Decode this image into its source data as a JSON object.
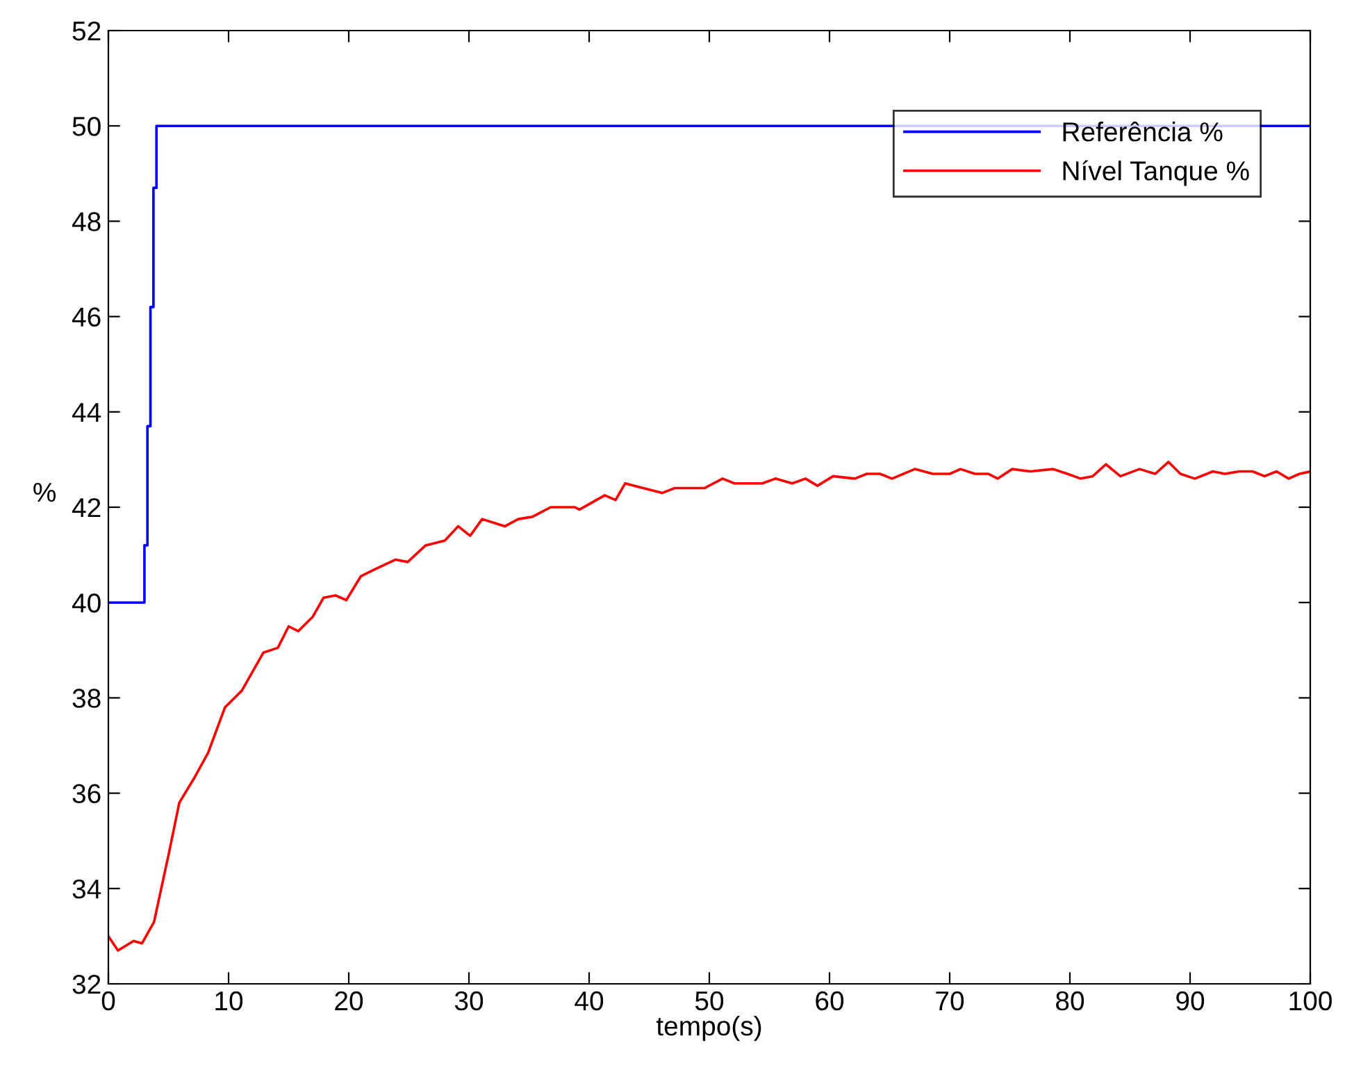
{
  "chart_data": {
    "type": "line",
    "xlabel": "tempo(s)",
    "ylabel": "%",
    "xlim": [
      0,
      100
    ],
    "ylim": [
      32,
      52
    ],
    "xticks": [
      0,
      10,
      20,
      30,
      40,
      50,
      60,
      70,
      80,
      90,
      100
    ],
    "yticks": [
      32,
      34,
      36,
      38,
      40,
      42,
      44,
      46,
      48,
      50,
      52
    ],
    "grid": false,
    "legend": "top right",
    "marker": "none",
    "line_style": "solid",
    "series": [
      {
        "name": "Referência %",
        "color": "#0000ff",
        "x": [
          0,
          3,
          3,
          3.25,
          3.25,
          3.5,
          3.5,
          3.75,
          3.75,
          4,
          4,
          100
        ],
        "values": [
          40,
          40,
          41.2,
          41.2,
          43.7,
          43.7,
          46.2,
          46.2,
          48.7,
          48.7,
          50,
          50
        ]
      },
      {
        "name": "Nível Tanque %",
        "color": "#ff0000",
        "x": [
          0,
          0.8,
          2.1,
          2.8,
          3.8,
          5.0,
          5.9,
          7.1,
          8.3,
          9.7,
          11.1,
          12.9,
          14.1,
          15.0,
          15.8,
          17.0,
          17.9,
          18.9,
          19.8,
          21.0,
          22.2,
          23.9,
          24.9,
          26.4,
          28.0,
          29.1,
          30.1,
          31.1,
          33.0,
          34.1,
          35.3,
          36.8,
          38.8,
          39.2,
          41.3,
          42.2,
          43.0,
          44.5,
          46.1,
          47.1,
          49.6,
          51.1,
          52.1,
          54.4,
          55.5,
          56.9,
          58.0,
          59.0,
          60.3,
          62.1,
          63.1,
          64.2,
          65.2,
          67.1,
          68.6,
          70.0,
          70.9,
          72.1,
          73.2,
          74.0,
          75.2,
          76.7,
          78.6,
          79.8,
          80.9,
          81.9,
          83.0,
          84.2,
          85.8,
          87.1,
          88.2,
          89.2,
          90.4,
          91.9,
          92.9,
          94.1,
          95.2,
          96.2,
          97.2,
          98.2,
          99.1,
          100
        ],
        "values": [
          33.0,
          32.7,
          32.9,
          32.85,
          33.3,
          34.7,
          35.8,
          36.3,
          36.85,
          37.8,
          38.15,
          38.95,
          39.05,
          39.5,
          39.4,
          39.7,
          40.1,
          40.15,
          40.05,
          40.55,
          40.7,
          40.9,
          40.85,
          41.2,
          41.3,
          41.6,
          41.4,
          41.75,
          41.6,
          41.75,
          41.8,
          42.0,
          42.0,
          41.95,
          42.25,
          42.15,
          42.5,
          42.4,
          42.3,
          42.4,
          42.4,
          42.6,
          42.5,
          42.5,
          42.6,
          42.5,
          42.6,
          42.45,
          42.65,
          42.6,
          42.7,
          42.7,
          42.6,
          42.8,
          42.7,
          42.7,
          42.8,
          42.7,
          42.7,
          42.6,
          42.8,
          42.75,
          42.8,
          42.7,
          42.6,
          42.65,
          42.9,
          42.65,
          42.8,
          42.7,
          42.95,
          42.7,
          42.6,
          42.75,
          42.7,
          42.75,
          42.75,
          42.65,
          42.75,
          42.6,
          42.7,
          42.75
        ]
      }
    ]
  }
}
